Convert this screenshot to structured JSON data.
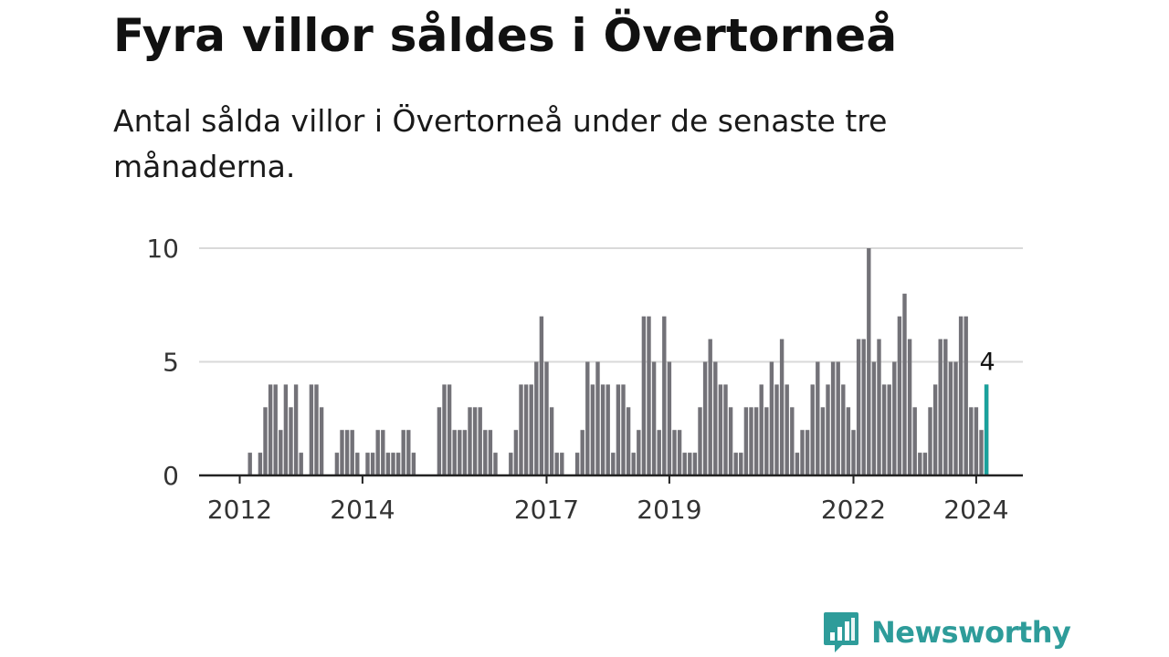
{
  "header": {
    "title": "Fyra villor såldes i Övertorneå",
    "subtitle": "Antal sålda villor i Övertorneå under de senaste tre månaderna."
  },
  "brand": {
    "name": "Newsworthy",
    "color": "#2e9c9a",
    "icon": "bar-chart-speech-bubble-icon"
  },
  "colors": {
    "bar": "#737278",
    "highlight": "#1aa19c",
    "grid": "#d9d9d9",
    "axis": "#222222"
  },
  "chart_data": {
    "type": "bar",
    "title": "Fyra villor såldes i Övertorneå",
    "subtitle": "Antal sålda villor i Övertorneå under de senaste tre månaderna.",
    "xlabel": "",
    "ylabel": "",
    "ylim": [
      0,
      10
    ],
    "yticks": [
      0,
      5,
      10
    ],
    "xticks": [
      {
        "label": "2012",
        "index": 0
      },
      {
        "label": "2014",
        "index": 24
      },
      {
        "label": "2017",
        "index": 60
      },
      {
        "label": "2019",
        "index": 84
      },
      {
        "label": "2022",
        "index": 120
      },
      {
        "label": "2024",
        "index": 144
      }
    ],
    "start": "2012-01",
    "frequency": "monthly",
    "values": [
      0,
      0,
      1,
      0,
      1,
      3,
      4,
      4,
      2,
      4,
      3,
      4,
      1,
      0,
      4,
      4,
      3,
      0,
      0,
      1,
      2,
      2,
      2,
      1,
      0,
      1,
      1,
      2,
      2,
      1,
      1,
      1,
      2,
      2,
      1,
      0,
      0,
      0,
      0,
      3,
      4,
      4,
      2,
      2,
      2,
      3,
      3,
      3,
      2,
      2,
      1,
      0,
      0,
      1,
      2,
      4,
      4,
      4,
      5,
      7,
      5,
      3,
      1,
      1,
      0,
      0,
      1,
      2,
      5,
      4,
      5,
      4,
      4,
      1,
      4,
      4,
      3,
      1,
      2,
      7,
      7,
      5,
      2,
      7,
      5,
      2,
      2,
      1,
      1,
      1,
      3,
      5,
      6,
      5,
      4,
      4,
      3,
      1,
      1,
      3,
      3,
      3,
      4,
      3,
      5,
      4,
      6,
      4,
      3,
      1,
      2,
      2,
      4,
      5,
      3,
      4,
      5,
      5,
      4,
      3,
      2,
      6,
      6,
      10,
      5,
      6,
      4,
      4,
      5,
      7,
      8,
      6,
      3,
      1,
      1,
      3,
      4,
      6,
      6,
      5,
      5,
      7,
      7,
      3,
      3,
      2,
      4
    ],
    "highlight_index": 146,
    "highlight_label": "4"
  }
}
